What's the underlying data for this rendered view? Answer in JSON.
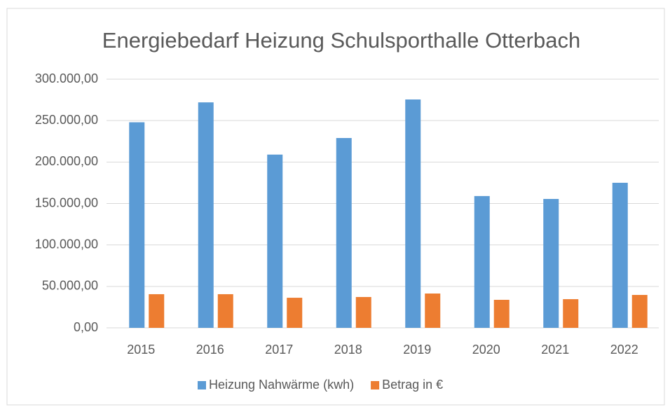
{
  "chart_data": {
    "type": "bar",
    "title": "Energiebedarf Heizung Schulsporthalle Otterbach",
    "categories": [
      "2015",
      "2016",
      "2017",
      "2018",
      "2019",
      "2020",
      "2021",
      "2022"
    ],
    "series": [
      {
        "name": "Heizung Nahwärme (kwh)",
        "color": "#5b9bd5",
        "values": [
          248000,
          272000,
          209000,
          229000,
          275500,
          159000,
          155500,
          175000
        ]
      },
      {
        "name": "Betrag in €",
        "color": "#ed7d31",
        "values": [
          40600,
          40600,
          36300,
          37200,
          41400,
          33800,
          34600,
          39700
        ]
      }
    ],
    "ylim": [
      0,
      300000
    ],
    "yticks": [
      {
        "value": 0,
        "label": "0,00"
      },
      {
        "value": 50000,
        "label": "50.000,00"
      },
      {
        "value": 100000,
        "label": "100.000,00"
      },
      {
        "value": 150000,
        "label": "150.000,00"
      },
      {
        "value": 200000,
        "label": "200.000,00"
      },
      {
        "value": 250000,
        "label": "250.000,00"
      },
      {
        "value": 300000,
        "label": "300.000,00"
      }
    ],
    "grid": true,
    "legend": "bottom"
  }
}
